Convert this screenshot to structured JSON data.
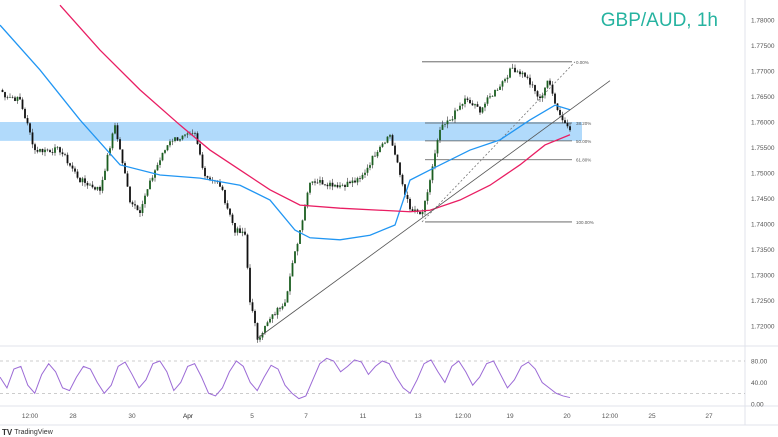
{
  "chart_data": {
    "type": "candlestick",
    "title": "GBP/AUD, 1h",
    "price_axis": {
      "ticks": [
        "1.78000",
        "1.77500",
        "1.77000",
        "1.76500",
        "1.76000",
        "1.75500",
        "1.75000",
        "1.74500",
        "1.74000",
        "1.73500",
        "1.73000",
        "1.72500",
        "1.72000"
      ],
      "range": [
        1.7155,
        1.783
      ]
    },
    "time_axis": {
      "ticks": [
        "12:00",
        "28",
        "30",
        "Apr",
        "5",
        "7",
        "11",
        "13",
        "12:00",
        "19",
        "20",
        "12:00",
        "25",
        "27"
      ]
    },
    "price_path": [
      [
        0,
        1.7663
      ],
      [
        2,
        1.7653
      ],
      [
        8,
        1.7643
      ],
      [
        14,
        1.7545
      ],
      [
        24,
        1.7545
      ],
      [
        32,
        1.7486
      ],
      [
        40,
        1.7467
      ],
      [
        46,
        1.7594
      ],
      [
        52,
        1.7447
      ],
      [
        56,
        1.7427
      ],
      [
        62,
        1.7506
      ],
      [
        68,
        1.7565
      ],
      [
        78,
        1.7575
      ],
      [
        82,
        1.7496
      ],
      [
        88,
        1.7476
      ],
      [
        94,
        1.7388
      ],
      [
        98,
        1.7378
      ],
      [
        100,
        1.7251
      ],
      [
        103,
        1.7176
      ],
      [
        108,
        1.7212
      ],
      [
        114,
        1.7251
      ],
      [
        120,
        1.7388
      ],
      [
        124,
        1.7486
      ],
      [
        136,
        1.7476
      ],
      [
        144,
        1.7486
      ],
      [
        152,
        1.7555
      ],
      [
        156,
        1.7575
      ],
      [
        160,
        1.7496
      ],
      [
        164,
        1.7427
      ],
      [
        169,
        1.7418
      ],
      [
        172,
        1.7486
      ],
      [
        176,
        1.7584
      ],
      [
        180,
        1.7604
      ],
      [
        186,
        1.7643
      ],
      [
        192,
        1.7624
      ],
      [
        200,
        1.7673
      ],
      [
        205,
        1.7706
      ],
      [
        210,
        1.7692
      ],
      [
        216,
        1.7643
      ],
      [
        219,
        1.7682
      ],
      [
        224,
        1.7614
      ],
      [
        228,
        1.7584
      ]
    ],
    "moving_averages": [
      {
        "color": "#2196f3",
        "values": [
          [
            0,
            1.779
          ],
          [
            16,
            1.7702
          ],
          [
            32,
            1.7604
          ],
          [
            48,
            1.7516
          ],
          [
            64,
            1.7496
          ],
          [
            80,
            1.749
          ],
          [
            96,
            1.7476
          ],
          [
            108,
            1.7447
          ],
          [
            118,
            1.7388
          ],
          [
            124,
            1.7373
          ],
          [
            136,
            1.7369
          ],
          [
            148,
            1.7378
          ],
          [
            158,
            1.7398
          ],
          [
            164,
            1.7486
          ],
          [
            172,
            1.7506
          ],
          [
            188,
            1.7545
          ],
          [
            200,
            1.7565
          ],
          [
            212,
            1.7604
          ],
          [
            222,
            1.7633
          ],
          [
            228,
            1.7624
          ]
        ]
      },
      {
        "color": "#e91e63",
        "values": [
          [
            24,
            1.7829
          ],
          [
            40,
            1.7741
          ],
          [
            56,
            1.7663
          ],
          [
            72,
            1.7594
          ],
          [
            84,
            1.7545
          ],
          [
            96,
            1.7506
          ],
          [
            108,
            1.7467
          ],
          [
            120,
            1.7437
          ],
          [
            136,
            1.7431
          ],
          [
            152,
            1.7427
          ],
          [
            164,
            1.7424
          ],
          [
            172,
            1.7427
          ],
          [
            184,
            1.7447
          ],
          [
            196,
            1.7476
          ],
          [
            208,
            1.7516
          ],
          [
            218,
            1.7555
          ],
          [
            228,
            1.7575
          ]
        ]
      }
    ],
    "support_zone": {
      "from": 1.7563,
      "to": 1.76,
      "color": "#90caf9"
    },
    "fibonacci": [
      {
        "label": "0.00%",
        "price": 1.7718
      },
      {
        "label": "38.20%",
        "price": 1.7598
      },
      {
        "label": "50.00%",
        "price": 1.7563
      },
      {
        "label": "61.80%",
        "price": 1.7526
      },
      {
        "label": "100.00%",
        "price": 1.7404
      }
    ],
    "trendline": {
      "from": [
        103,
        1.7176
      ],
      "to": [
        244,
        1.7681
      ]
    },
    "rsi": {
      "ticks": [
        "80.00",
        "40.00",
        "0.00"
      ],
      "range": [
        0,
        100
      ],
      "levels": [
        80,
        20
      ],
      "color": "#9c6bd6",
      "values": [
        50,
        30,
        65,
        70,
        35,
        20,
        55,
        75,
        60,
        30,
        25,
        50,
        70,
        65,
        40,
        20,
        35,
        70,
        78,
        55,
        30,
        45,
        75,
        80,
        60,
        25,
        40,
        70,
        75,
        50,
        20,
        15,
        30,
        60,
        80,
        70,
        40,
        25,
        50,
        72,
        65,
        35,
        20,
        10,
        15,
        45,
        75,
        85,
        80,
        60,
        70,
        82,
        78,
        55,
        70,
        80,
        75,
        50,
        30,
        20,
        45,
        75,
        82,
        60,
        40,
        70,
        80,
        60,
        35,
        50,
        75,
        80,
        55,
        30,
        45,
        70,
        78,
        65,
        40,
        30,
        20,
        15,
        12
      ]
    }
  },
  "branding": {
    "logo_text": "TradingView"
  }
}
